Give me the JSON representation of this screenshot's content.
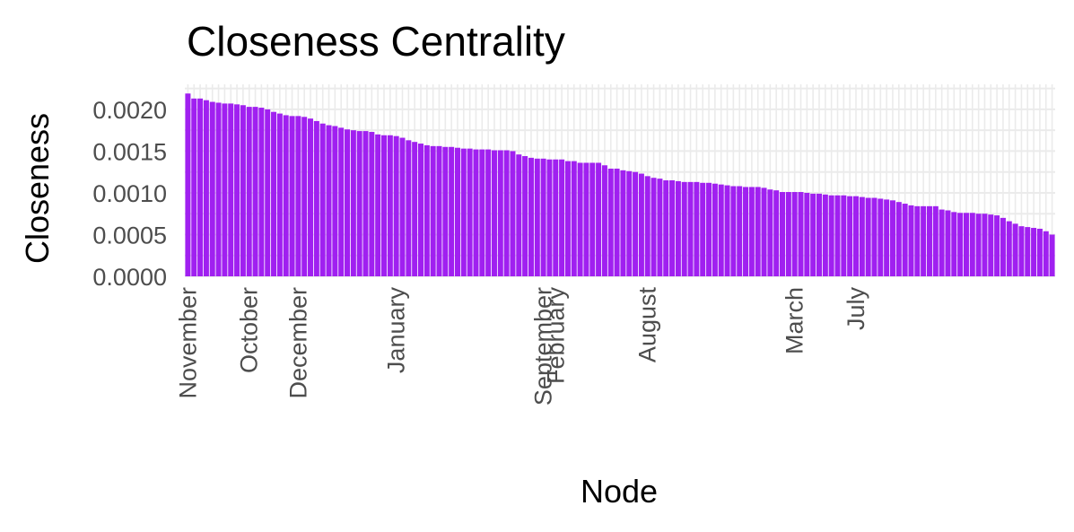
{
  "chart_data": {
    "type": "bar",
    "title": "Closeness Centrality",
    "xlabel": "Node",
    "ylabel": "Closeness",
    "ylim": [
      0,
      0.0023
    ],
    "yticks": [
      0.0,
      0.0005,
      0.001,
      0.0015,
      0.002
    ],
    "ytick_labels": [
      "0.0000",
      "0.0005",
      "0.0010",
      "0.0015",
      "0.0020"
    ],
    "grid": true,
    "bar_color": "#a020f0",
    "grid_color": "#ebebeb",
    "values": [
      0.00219,
      0.00213,
      0.00213,
      0.00211,
      0.00209,
      0.00208,
      0.00207,
      0.00207,
      0.00206,
      0.00205,
      0.00203,
      0.00203,
      0.00202,
      0.002,
      0.00197,
      0.00195,
      0.00193,
      0.00192,
      0.00192,
      0.00191,
      0.00189,
      0.00186,
      0.00183,
      0.00181,
      0.0018,
      0.00178,
      0.00176,
      0.00175,
      0.00174,
      0.00174,
      0.00173,
      0.0017,
      0.00169,
      0.00169,
      0.00168,
      0.00166,
      0.00163,
      0.00161,
      0.00159,
      0.00157,
      0.00156,
      0.00156,
      0.00155,
      0.00155,
      0.00154,
      0.00153,
      0.00153,
      0.00152,
      0.00152,
      0.00152,
      0.00151,
      0.00151,
      0.00151,
      0.0015,
      0.00146,
      0.00144,
      0.00142,
      0.00141,
      0.00141,
      0.0014,
      0.0014,
      0.0014,
      0.00138,
      0.00138,
      0.00136,
      0.00136,
      0.00136,
      0.00136,
      0.00133,
      0.00129,
      0.00129,
      0.00127,
      0.00126,
      0.00125,
      0.00123,
      0.0012,
      0.00118,
      0.00117,
      0.00115,
      0.00115,
      0.00114,
      0.00113,
      0.00113,
      0.00113,
      0.00112,
      0.00112,
      0.00111,
      0.0011,
      0.00109,
      0.00108,
      0.00108,
      0.00107,
      0.00107,
      0.00107,
      0.00106,
      0.00104,
      0.00103,
      0.00101,
      0.00101,
      0.00101,
      0.00101,
      0.001,
      0.00099,
      0.00099,
      0.00098,
      0.00097,
      0.00097,
      0.00097,
      0.00096,
      0.00096,
      0.00095,
      0.00094,
      0.00094,
      0.00093,
      0.00092,
      0.00091,
      0.00089,
      0.00087,
      0.00085,
      0.00084,
      0.00084,
      0.00084,
      0.00084,
      0.0008,
      0.00079,
      0.00077,
      0.00076,
      0.00076,
      0.00076,
      0.00075,
      0.00075,
      0.00074,
      0.00073,
      0.0007,
      0.00066,
      0.00063,
      0.0006,
      0.00059,
      0.00058,
      0.00057,
      0.00054,
      0.0005
    ],
    "category_labels": [
      {
        "index": 0,
        "label": "November"
      },
      {
        "index": 10,
        "label": "October"
      },
      {
        "index": 18,
        "label": "December"
      },
      {
        "index": 34,
        "label": "January"
      },
      {
        "index": 58,
        "label": "September"
      },
      {
        "index": 60,
        "label": "February"
      },
      {
        "index": 75,
        "label": "August"
      },
      {
        "index": 99,
        "label": "March"
      },
      {
        "index": 109,
        "label": "July"
      }
    ]
  }
}
